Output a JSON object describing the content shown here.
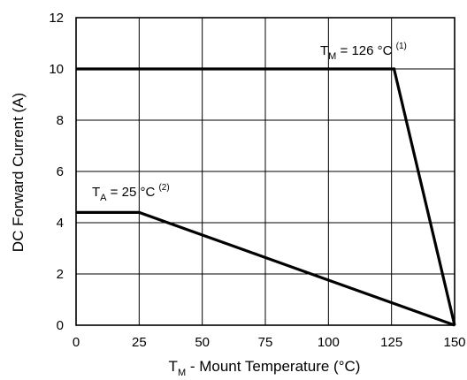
{
  "chart_data": {
    "type": "line",
    "title": "",
    "xlabel": {
      "main": "T",
      "sub": "M",
      "rest": " - Mount Temperature (°C)"
    },
    "ylabel": "DC Forward Current (A)",
    "xlim": [
      0,
      150
    ],
    "ylim": [
      0,
      12
    ],
    "xticks": [
      0,
      25,
      50,
      75,
      100,
      125,
      150
    ],
    "yticks": [
      0,
      2,
      4,
      6,
      8,
      10,
      12
    ],
    "grid": true,
    "series": [
      {
        "x": [
          0,
          126,
          150
        ],
        "y": [
          10,
          10,
          0
        ]
      },
      {
        "x": [
          0,
          25,
          150
        ],
        "y": [
          4.4,
          4.4,
          0
        ]
      }
    ],
    "annotations": [
      {
        "main": "T",
        "sub": "M",
        "rest": " = 126 °C ",
        "sup": "(1)"
      },
      {
        "main": "T",
        "sub": "A",
        "rest": " = 25 °C ",
        "sup": "(2)"
      }
    ],
    "colors": {
      "line": "#000000",
      "grid": "#000000",
      "background": "#ffffff"
    }
  }
}
